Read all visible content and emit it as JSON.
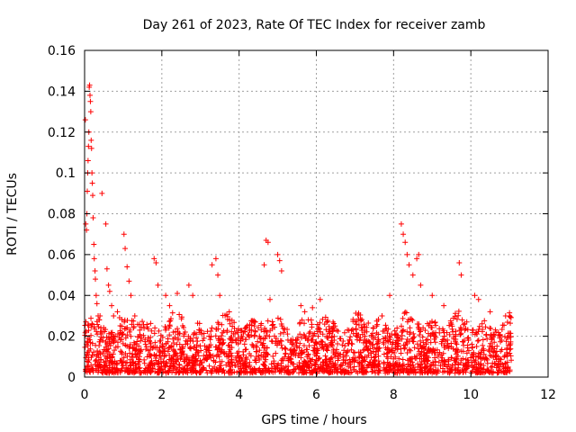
{
  "chart_data": {
    "type": "scatter",
    "title": "Day 261 of 2023, Rate Of TEC Index for receiver zamb",
    "xlabel": "GPS time / hours",
    "ylabel": "ROTI / TECUs",
    "xlim": [
      0,
      12
    ],
    "ylim": [
      0,
      0.16
    ],
    "x_ticks": [
      0,
      2,
      4,
      6,
      8,
      10,
      12
    ],
    "y_ticks": [
      0,
      0.02,
      0.04,
      0.06,
      0.08,
      0.1,
      0.12,
      0.14,
      0.16
    ],
    "x_tick_labels": [
      "0",
      "2",
      "4",
      "6",
      "8",
      "10",
      "12"
    ],
    "y_tick_labels": [
      "0",
      "0.02",
      "0.04",
      "0.06",
      "0.08",
      "0.1",
      "0.12",
      "0.14",
      "0.16"
    ],
    "grid": true,
    "marker": "+",
    "color": "#ff0000",
    "series": [
      {
        "name": "ROTI",
        "x": [
          0.02,
          0.03,
          0.05,
          0.06,
          0.07,
          0.08,
          0.09,
          0.1,
          0.11,
          0.12,
          0.13,
          0.14,
          0.15,
          0.16,
          0.17,
          0.18,
          0.19,
          0.2,
          0.21,
          0.22,
          0.24,
          0.25,
          0.27,
          0.28,
          0.3,
          0.32,
          0.35,
          0.38,
          0.4,
          0.45,
          0.55,
          0.58,
          0.62,
          0.65,
          0.7,
          0.75,
          0.85,
          1.02,
          1.05,
          1.1,
          1.15,
          1.2,
          1.3,
          1.8,
          1.85,
          1.9,
          2.1,
          2.2,
          2.4,
          2.7,
          2.8,
          3.3,
          3.4,
          3.45,
          3.5,
          4.65,
          4.7,
          4.75,
          4.8,
          5.0,
          5.05,
          5.1,
          5.6,
          5.7,
          5.9,
          6.1,
          7.7,
          7.9,
          8.2,
          8.25,
          8.3,
          8.35,
          8.4,
          8.5,
          8.6,
          8.65,
          8.7,
          9.0,
          9.3,
          9.7,
          9.75,
          10.1,
          10.2,
          10.5,
          10.9,
          11.0
        ],
        "y": [
          0.126,
          0.075,
          0.072,
          0.08,
          0.091,
          0.1,
          0.106,
          0.113,
          0.12,
          0.142,
          0.143,
          0.138,
          0.135,
          0.13,
          0.116,
          0.112,
          0.1,
          0.095,
          0.089,
          0.078,
          0.065,
          0.058,
          0.052,
          0.048,
          0.04,
          0.036,
          0.03,
          0.028,
          0.03,
          0.09,
          0.075,
          0.053,
          0.045,
          0.042,
          0.035,
          0.03,
          0.032,
          0.07,
          0.063,
          0.054,
          0.047,
          0.04,
          0.03,
          0.058,
          0.056,
          0.045,
          0.04,
          0.035,
          0.041,
          0.045,
          0.04,
          0.055,
          0.058,
          0.05,
          0.04,
          0.055,
          0.067,
          0.066,
          0.038,
          0.06,
          0.057,
          0.052,
          0.035,
          0.032,
          0.034,
          0.038,
          0.03,
          0.04,
          0.075,
          0.07,
          0.066,
          0.06,
          0.055,
          0.05,
          0.058,
          0.06,
          0.045,
          0.04,
          0.035,
          0.056,
          0.05,
          0.04,
          0.038,
          0.032,
          0.03,
          0.03
        ]
      }
    ],
    "dense_band": {
      "description": "continuous dense cloud of points between 0 and ~0.03 over the observation interval",
      "x_range": [
        0,
        11.05
      ],
      "y_range": [
        0.002,
        0.028
      ],
      "gaps": [
        [
          7.65,
          7.72
        ],
        [
          9.95,
          10.0
        ]
      ]
    }
  }
}
